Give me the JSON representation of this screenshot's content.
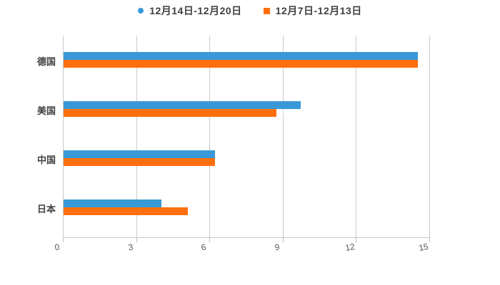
{
  "chart_data": {
    "type": "bar",
    "orientation": "horizontal",
    "title": "",
    "categories": [
      "德国",
      "美国",
      "中国",
      "日本"
    ],
    "series": [
      {
        "name": "12月14日-12月20日",
        "marker": "circle",
        "color": "#3999d8",
        "values": [
          14.5,
          9.7,
          6.2,
          4.0
        ]
      },
      {
        "name": "12月7日-12月13日",
        "marker": "square",
        "color": "#ff6f0d",
        "values": [
          14.5,
          8.7,
          6.2,
          5.1
        ]
      }
    ],
    "xlabel": "",
    "ylabel": "",
    "xlim": [
      0,
      15
    ],
    "xticks": [
      "0",
      "3",
      "6",
      "9",
      "12",
      "15"
    ],
    "grid": "vertical-only",
    "legend_position": "top-center",
    "value_labels": {
      "shown_color": "#ffffff",
      "note_visible_in_pixels": "labels rendered white; only gridline overlaps visible"
    },
    "colors": {
      "background": "#ffffff",
      "gridline": "#cccccc",
      "axis_line": "#c8c8c8",
      "tick_mark": "#bbbbbb",
      "tick_label_text": "#595959",
      "category_label_text": "#404040",
      "legend_text": "#3f3f3f"
    }
  }
}
